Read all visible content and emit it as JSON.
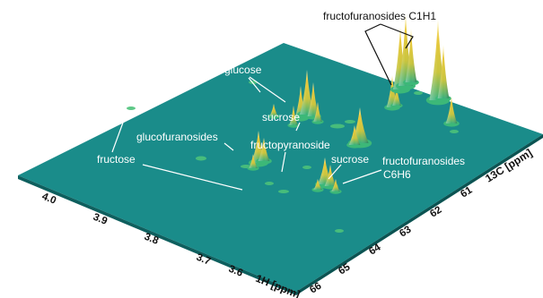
{
  "chart_data": {
    "type": "surface-3d",
    "title": "",
    "x_axis": {
      "label": "1H [ppm]",
      "ticks": [
        "4.0",
        "3.9",
        "3.8",
        "3.7",
        "3.6"
      ],
      "range": [
        4.1,
        3.55
      ]
    },
    "y_axis": {
      "label": "13C [ppm]",
      "ticks": [
        "61",
        "62",
        "63",
        "64",
        "65",
        "66"
      ],
      "range": [
        60.5,
        66.0
      ]
    },
    "annotations": [
      {
        "id": "fructofuranosides-c1h1",
        "text": "fructofuranosides C1H1"
      },
      {
        "id": "glucose",
        "text": "glucose"
      },
      {
        "id": "sucrose-1",
        "text": "sucrose"
      },
      {
        "id": "glucofuranosides",
        "text": "glucofuranosides"
      },
      {
        "id": "fructopyranoside",
        "text": "fructopyranoside"
      },
      {
        "id": "fructose",
        "text": "fructose"
      },
      {
        "id": "sucrose-2",
        "text": "sucrose"
      },
      {
        "id": "fructofuranosides-c6h6-1",
        "text": "fructofuranosides"
      },
      {
        "id": "fructofuranosides-c6h6-2",
        "text": "C6H6"
      }
    ],
    "colors": {
      "surface": "#1a8c8a",
      "surface_edge": "#0e5f5e",
      "peak_top": "#f2e48a",
      "peak_mid": "#d9b62a",
      "peak_base": "#3cb878",
      "label": "#ffffff"
    }
  }
}
